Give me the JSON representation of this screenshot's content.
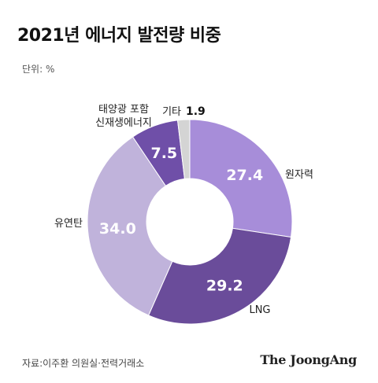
{
  "header": {
    "title": "2021년 에너지 발전량 비중",
    "unit": "단위: %"
  },
  "footer": {
    "source": "자료:이주환 의원실·전력거래소",
    "brand": "The JoongAng"
  },
  "colors": {
    "nuclear": "#A78DD9",
    "lng": "#6A4C9A",
    "coal": "#C0B3DB",
    "renewable": "#6F4FA8",
    "other": "#D4D4D4"
  },
  "chart_data": {
    "type": "pie",
    "title": "2021년 에너지 발전량 비중",
    "unit": "%",
    "start": "top",
    "direction": "clockwise",
    "slices": [
      {
        "label": "원자력",
        "value": 27.4,
        "value_label": "27.4",
        "color": "#A78DD9"
      },
      {
        "label": "LNG",
        "value": 29.2,
        "value_label": "29.2",
        "color": "#6A4C9A"
      },
      {
        "label": "유연탄",
        "value": 34.0,
        "value_label": "34.0",
        "color": "#C0B3DB"
      },
      {
        "label": "태양광 포함 신재생에너지",
        "label_lines": [
          "태양광 포함",
          "신재생에너지"
        ],
        "value": 7.5,
        "value_label": "7.5",
        "color": "#6F4FA8"
      },
      {
        "label": "기타",
        "value": 1.9,
        "value_label": "1.9",
        "color": "#D4D4D4"
      }
    ]
  }
}
